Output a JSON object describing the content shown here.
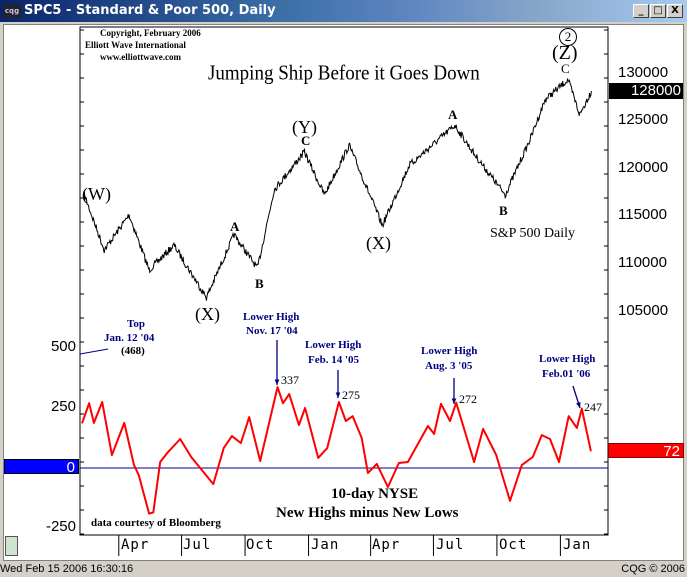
{
  "window": {
    "title": "SPC5 - Standard & Poor 500, Daily",
    "app_icon": "cqg",
    "buttons": [
      "_",
      "□",
      "X"
    ]
  },
  "status": {
    "datetime": "Wed Feb 15 2006 16:30:16",
    "copyright": "CQG © 2006"
  },
  "colors": {
    "price": "#000000",
    "indicator": "#ff0000",
    "zero_line": "#0000a0",
    "zero_box": "#0000ff",
    "last_value_box": "#ff0000",
    "price_box": "#000000"
  },
  "chart_data": [
    {
      "type": "line",
      "title": "Jumping Ship Before it Goes Down",
      "subtitle": "S&P 500 Daily",
      "credits": [
        "Copyright, February 2006",
        "Elliott Wave International",
        "www.elliottwave.com"
      ],
      "yticks": [
        "130000",
        "125000",
        "120000",
        "115000",
        "110000",
        "105000"
      ],
      "ylim": [
        104000,
        134000
      ],
      "last_value": "128000",
      "x": [
        "2004-02-11",
        "2004-03-11",
        "2004-04-16",
        "2004-05-15",
        "2004-06-20",
        "2004-08-06",
        "2004-09-15",
        "2004-10-19",
        "2004-11-12",
        "2004-12-26",
        "2005-01-24",
        "2005-03-01",
        "2005-04-18",
        "2005-05-27",
        "2005-08-01",
        "2005-08-30",
        "2005-10-13",
        "2005-11-18",
        "2005-12-10",
        "2006-01-12",
        "2006-01-29",
        "2006-02-15"
      ],
      "values": [
        117100,
        111300,
        115000,
        109200,
        111800,
        106300,
        112900,
        109400,
        117600,
        121600,
        117100,
        122300,
        113900,
        120200,
        124400,
        121300,
        117100,
        122900,
        127100,
        129200,
        125500,
        128000
      ],
      "wave_labels": {
        "W": "(W)",
        "X1": "(X)",
        "A1": "A",
        "B1": "B",
        "Y": "(Y)",
        "YC": "C",
        "X2": "(X)",
        "A2": "A",
        "B2": "B",
        "Z2": "2",
        "Z": "(Z)",
        "ZC": "C"
      }
    },
    {
      "type": "line",
      "title": "10-day NYSE",
      "subtitle": "New Highs minus New Lows",
      "source": "data courtesy of Bloomberg",
      "yticks": [
        "500",
        "250",
        "0",
        "-250"
      ],
      "ylim": [
        -280,
        560
      ],
      "last_value": "72",
      "zero_label": "0",
      "xticks": [
        "Apr",
        "Jul",
        "Oct",
        "Jan",
        "Apr",
        "Jul",
        "Oct",
        "Jan"
      ],
      "x": [
        "2004-02-08",
        "2004-02-18",
        "2004-02-25",
        "2004-03-08",
        "2004-03-22",
        "2004-04-09",
        "2004-04-23",
        "2004-04-30",
        "2004-05-15",
        "2004-05-21",
        "2004-05-31",
        "2004-06-10",
        "2004-06-29",
        "2004-07-15",
        "2004-08-16",
        "2004-08-31",
        "2004-09-12",
        "2004-09-25",
        "2004-10-07",
        "2004-10-23",
        "2004-11-17",
        "2004-11-25",
        "2004-12-04",
        "2004-12-18",
        "2004-12-27",
        "2005-01-15",
        "2005-01-28",
        "2005-02-14",
        "2005-02-24",
        "2005-03-06",
        "2005-03-19",
        "2005-03-28",
        "2005-04-10",
        "2005-04-26",
        "2005-05-12",
        "2005-05-25",
        "2005-06-23",
        "2005-07-02",
        "2005-07-12",
        "2005-07-25",
        "2005-08-03",
        "2005-08-29",
        "2005-09-11",
        "2005-09-30",
        "2005-10-20",
        "2005-11-06",
        "2005-11-22",
        "2005-12-05",
        "2005-12-17",
        "2005-12-30",
        "2006-01-13",
        "2006-01-25",
        "2006-02-01",
        "2006-02-14"
      ],
      "values": [
        188,
        270,
        188,
        275,
        54,
        188,
        12,
        -30,
        -190,
        -185,
        25,
        62,
        121,
        46,
        -67,
        83,
        133,
        104,
        212,
        29,
        337,
        270,
        308,
        179,
        250,
        42,
        83,
        275,
        196,
        216,
        125,
        -21,
        17,
        -79,
        21,
        25,
        175,
        142,
        267,
        196,
        272,
        25,
        163,
        54,
        -137,
        12,
        46,
        137,
        121,
        25,
        216,
        167,
        247,
        72
      ],
      "annotations": {
        "top": {
          "l1": "Top",
          "l2": "Jan. 12 '04",
          "l3": "(468)"
        },
        "h1": {
          "l1": "Lower High",
          "l2": "Nov. 17 '04",
          "v": "337"
        },
        "h2": {
          "l1": "Lower High",
          "l2": "Feb. 14 '05",
          "v": "275"
        },
        "h3": {
          "l1": "Lower High",
          "l2": "Aug. 3 '05",
          "v": "272"
        },
        "h4": {
          "l1": "Lower High",
          "l2": "Feb.01 '06",
          "v": "247"
        }
      }
    }
  ]
}
